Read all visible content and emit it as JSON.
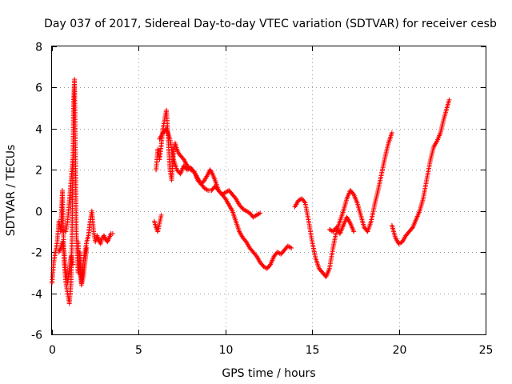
{
  "chart_data": {
    "type": "scatter",
    "title": "Day 037 of 2017, Sidereal Day-to-day VTEC variation (SDTVAR) for receiver cesb",
    "xlabel": "GPS time / hours",
    "ylabel": "SDTVAR / TECUs",
    "xlim": [
      0,
      25
    ],
    "ylim": [
      -6,
      8
    ],
    "xticks": [
      0,
      5,
      10,
      15,
      20,
      25
    ],
    "yticks": [
      -6,
      -4,
      -2,
      0,
      2,
      4,
      6,
      8
    ],
    "grid": true,
    "marker": "+",
    "color": "#ff0000",
    "series": [
      {
        "name": "cesb",
        "segments": [
          {
            "x": [
              0.0,
              0.1,
              0.2,
              0.3,
              0.4,
              0.5,
              0.6,
              0.7,
              0.8,
              0.9,
              1.0,
              1.1,
              1.15,
              1.2,
              1.25,
              1.3,
              1.35,
              1.4,
              1.5,
              1.6,
              1.7,
              1.8,
              1.9,
              2.0,
              2.1,
              2.2,
              2.3,
              2.4,
              2.5,
              2.6,
              2.7,
              2.8,
              2.9,
              3.0,
              3.1,
              3.2,
              3.3,
              3.4,
              3.5
            ],
            "y": [
              -3.5,
              -2.5,
              -2.0,
              -1.5,
              -0.5,
              -1.0,
              1.0,
              -2.5,
              -3.5,
              -4.0,
              -4.5,
              -3.5,
              -1.5,
              2.0,
              5.5,
              6.4,
              3.0,
              -1.0,
              -3.0,
              -2.0,
              -3.5,
              -2.5,
              -2.0,
              -1.5,
              -1.2,
              -0.5,
              0.0,
              -1.0,
              -1.5,
              -1.2,
              -1.4,
              -1.6,
              -1.3,
              -1.2,
              -1.4,
              -1.5,
              -1.3,
              -1.1,
              -1.1
            ]
          },
          {
            "x": [
              0.4,
              0.5,
              0.6,
              0.7,
              0.8,
              0.9,
              1.0,
              1.1,
              1.2
            ],
            "y": [
              -2.0,
              -1.8,
              -1.5,
              -2.0,
              -3.0,
              -3.5,
              -2.8,
              -2.2,
              -2.6
            ]
          },
          {
            "x": [
              0.8,
              0.9,
              1.0,
              1.1,
              1.2
            ],
            "y": [
              -1.0,
              -0.5,
              0.5,
              1.5,
              2.5
            ]
          },
          {
            "x": [
              1.5,
              1.6,
              1.7,
              1.8,
              1.9,
              2.0
            ],
            "y": [
              -1.5,
              -2.8,
              -3.6,
              -3.2,
              -2.5,
              -1.8
            ]
          },
          {
            "x": [
              5.9,
              6.0,
              6.1,
              6.2,
              6.3
            ],
            "y": [
              -0.5,
              -0.8,
              -1.0,
              -0.6,
              -0.2
            ]
          },
          {
            "x": [
              6.0,
              6.1,
              6.2,
              6.3,
              6.4,
              6.5,
              6.6,
              6.7,
              6.8,
              6.9,
              7.0,
              7.1,
              7.2,
              7.3,
              7.4,
              7.6,
              7.8,
              8.0,
              8.2,
              8.4,
              8.6,
              8.8,
              9.0,
              9.1,
              9.2,
              9.4,
              9.6,
              9.8,
              10.0,
              10.2,
              10.4,
              10.6,
              10.8,
              11.0,
              11.2,
              11.4,
              11.6,
              11.8,
              12.0,
              12.2,
              12.4,
              12.6,
              12.8,
              13.0,
              13.2,
              13.4,
              13.6,
              13.8
            ],
            "y": [
              2.0,
              3.0,
              2.5,
              3.2,
              4.0,
              4.5,
              4.9,
              3.5,
              2.0,
              1.5,
              2.8,
              3.3,
              3.0,
              2.8,
              2.7,
              2.5,
              2.2,
              2.0,
              1.9,
              1.5,
              1.3,
              1.5,
              1.8,
              2.0,
              1.9,
              1.5,
              1.0,
              0.8,
              0.6,
              0.3,
              0.0,
              -0.5,
              -1.0,
              -1.3,
              -1.5,
              -1.8,
              -2.0,
              -2.2,
              -2.5,
              -2.7,
              -2.8,
              -2.6,
              -2.2,
              -2.0,
              -2.1,
              -1.9,
              -1.7,
              -1.8
            ]
          },
          {
            "x": [
              6.2,
              6.4,
              6.6,
              6.8,
              7.0,
              7.2,
              7.4,
              7.6,
              7.8,
              8.0,
              8.2,
              8.4,
              8.6,
              8.8,
              9.0,
              9.2,
              9.4,
              9.6,
              9.8,
              10.0,
              10.2,
              10.4,
              10.6,
              10.8,
              11.0,
              11.2,
              11.4,
              11.6,
              11.8,
              12.0
            ],
            "y": [
              3.5,
              3.8,
              4.0,
              3.5,
              2.5,
              2.0,
              1.8,
              2.2,
              2.0,
              2.1,
              1.9,
              1.6,
              1.3,
              1.1,
              1.0,
              1.0,
              1.2,
              1.0,
              0.8,
              0.9,
              1.0,
              0.8,
              0.6,
              0.3,
              0.1,
              0.0,
              -0.1,
              -0.3,
              -0.2,
              -0.1
            ]
          },
          {
            "x": [
              14.0,
              14.2,
              14.4,
              14.6,
              14.8,
              15.0,
              15.2,
              15.4,
              15.6,
              15.8,
              16.0,
              16.2,
              16.4,
              16.6,
              16.8,
              17.0,
              17.2,
              17.4,
              17.6,
              17.8,
              18.0,
              18.2,
              18.4,
              18.6,
              18.8,
              19.0,
              19.2,
              19.4,
              19.6
            ],
            "y": [
              0.2,
              0.5,
              0.6,
              0.4,
              -0.5,
              -1.5,
              -2.3,
              -2.8,
              -3.0,
              -3.2,
              -2.8,
              -1.8,
              -1.0,
              -0.5,
              0.0,
              0.6,
              1.0,
              0.8,
              0.4,
              -0.2,
              -0.8,
              -1.0,
              -0.5,
              0.3,
              1.0,
              1.8,
              2.6,
              3.3,
              3.8
            ]
          },
          {
            "x": [
              16.0,
              16.2,
              16.4,
              16.6,
              16.8,
              17.0,
              17.2,
              17.4
            ],
            "y": [
              -0.9,
              -1.0,
              -0.8,
              -1.1,
              -0.7,
              -0.3,
              -0.6,
              -1.0
            ]
          },
          {
            "x": [
              19.6,
              19.8,
              20.0,
              20.2,
              20.4,
              20.6,
              20.8,
              21.0,
              21.2,
              21.4,
              21.6,
              21.8,
              22.0,
              22.2,
              22.4,
              22.6,
              22.8,
              22.9
            ],
            "y": [
              -0.7,
              -1.3,
              -1.6,
              -1.5,
              -1.2,
              -1.0,
              -0.8,
              -0.4,
              0.0,
              0.6,
              1.5,
              2.4,
              3.1,
              3.4,
              3.8,
              4.5,
              5.1,
              5.4
            ]
          }
        ]
      }
    ]
  }
}
